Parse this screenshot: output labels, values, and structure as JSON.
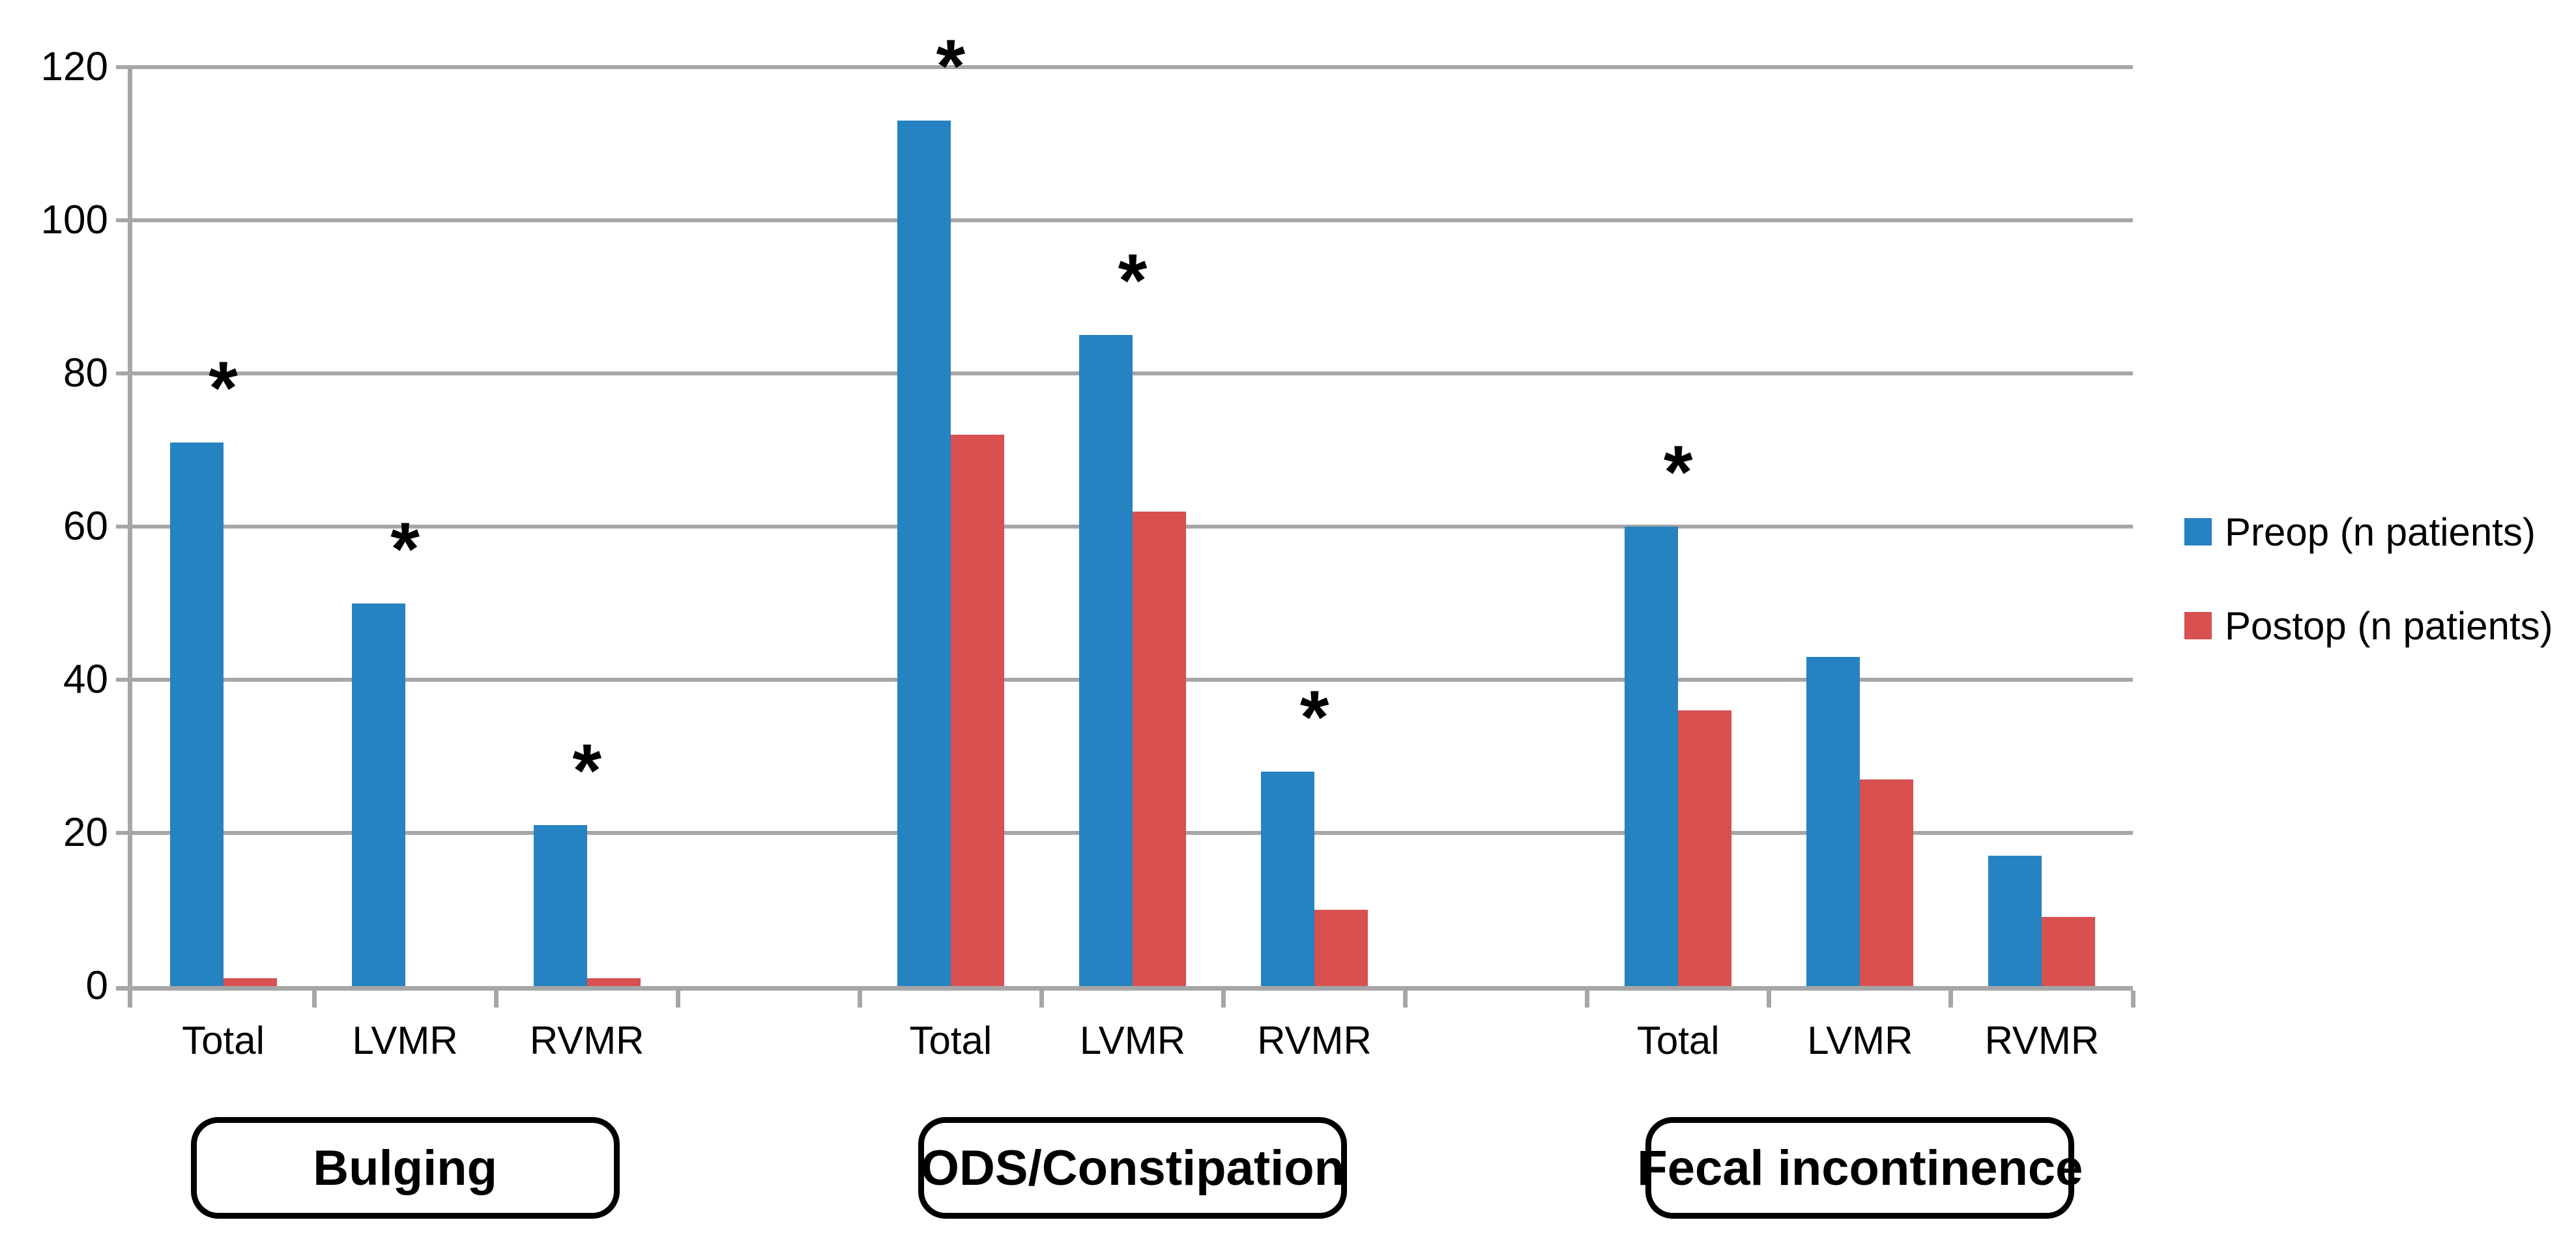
{
  "chart_data": {
    "type": "bar",
    "title": "",
    "xlabel": "",
    "ylabel": "",
    "ylim": [
      0,
      120
    ],
    "yticks": [
      0,
      20,
      40,
      60,
      80,
      100,
      120
    ],
    "grid": true,
    "legend_position": "right",
    "significance_marker": "*",
    "axis_color": "#A6A6A6",
    "text_color": "#000000",
    "series": [
      {
        "name": "Preop (n patients)",
        "color": "#2583C1"
      },
      {
        "name": "Postop (n patients)",
        "color": "#D85050"
      }
    ],
    "groups": [
      {
        "label": "Bulging",
        "categories": [
          "Total",
          "LVMR",
          "RVMR"
        ],
        "series": [
          {
            "name": "Preop (n patients)",
            "values": [
              71,
              50,
              21
            ]
          },
          {
            "name": "Postop (n patients)",
            "values": [
              1,
              0,
              1
            ]
          }
        ],
        "significant": [
          true,
          true,
          true
        ]
      },
      {
        "label": "ODS/Constipation",
        "categories": [
          "Total",
          "LVMR",
          "RVMR"
        ],
        "series": [
          {
            "name": "Preop (n patients)",
            "values": [
              113,
              85,
              28
            ]
          },
          {
            "name": "Postop (n patients)",
            "values": [
              72,
              62,
              10
            ]
          }
        ],
        "significant": [
          true,
          true,
          true
        ]
      },
      {
        "label": "Fecal incontinence",
        "categories": [
          "Total",
          "LVMR",
          "RVMR"
        ],
        "series": [
          {
            "name": "Preop (n patients)",
            "values": [
              60,
              43,
              17
            ]
          },
          {
            "name": "Postop (n patients)",
            "values": [
              36,
              27,
              9
            ]
          }
        ],
        "significant": [
          true,
          false,
          false
        ]
      }
    ]
  }
}
